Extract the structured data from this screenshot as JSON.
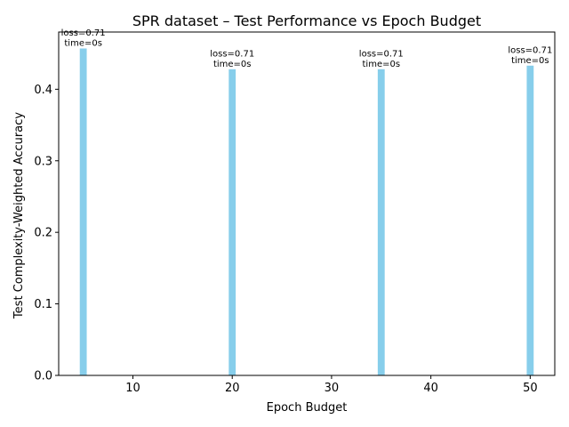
{
  "chart_data": {
    "type": "bar",
    "title": "SPR dataset – Test Performance vs Epoch Budget",
    "xlabel": "Epoch Budget",
    "ylabel": "Test Complexity-Weighted Accuracy",
    "x": [
      5,
      20,
      35,
      50
    ],
    "values": [
      0.457,
      0.428,
      0.428,
      0.433
    ],
    "annotations": [
      [
        "loss=0.71",
        "time=0s"
      ],
      [
        "loss=0.71",
        "time=0s"
      ],
      [
        "loss=0.71",
        "time=0s"
      ],
      [
        "loss=0.71",
        "time=0s"
      ]
    ],
    "bar_color": "#87ceeb",
    "xlim": [
      2.525,
      52.475
    ],
    "ylim": [
      0,
      0.48
    ],
    "xticks": [
      10,
      20,
      30,
      40,
      50
    ],
    "xtick_labels": [
      "10",
      "20",
      "30",
      "40",
      "50"
    ],
    "yticks": [
      0.0,
      0.1,
      0.2,
      0.3,
      0.4
    ],
    "ytick_labels": [
      "0.0",
      "0.1",
      "0.2",
      "0.3",
      "0.4"
    ],
    "bar_width": 0.7,
    "grid": false,
    "legend": "none"
  }
}
